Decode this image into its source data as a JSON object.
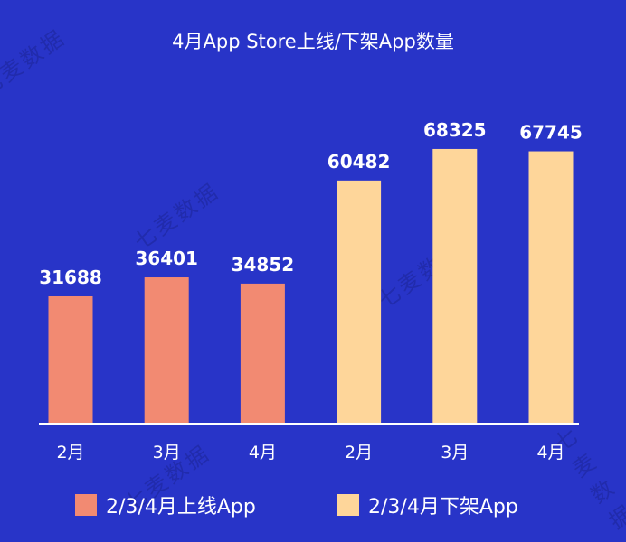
{
  "chart_data": {
    "type": "bar",
    "title": "4月App Store上线/下架App数量",
    "categories": [
      "2月",
      "3月",
      "4月",
      "2月",
      "3月",
      "4月"
    ],
    "series": [
      {
        "name": "2/3/4月上线App",
        "color": "#f28a72",
        "values": [
          31688,
          36401,
          34852,
          null,
          null,
          null
        ]
      },
      {
        "name": "2/3/4月下架App",
        "color": "#fed69a",
        "values": [
          null,
          null,
          null,
          60482,
          68325,
          67745
        ]
      }
    ],
    "xlabel": "",
    "ylabel": "",
    "ylim": [
      0,
      80000
    ],
    "grid": false,
    "legend_placement": "bottom",
    "background_color": "#2834c8",
    "watermark_text": "七麦数据"
  }
}
